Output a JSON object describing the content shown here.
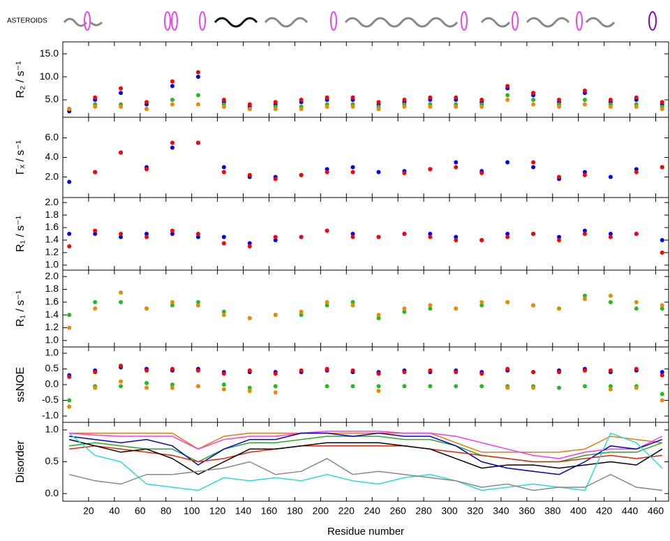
{
  "header": {
    "label": "ASTEROIDS"
  },
  "chart_data": [
    {
      "type": "scatter",
      "ylabel": "R₂ / s⁻¹",
      "xlim": [
        0,
        470
      ],
      "ylim": [
        1.2,
        17.6
      ],
      "yticks": [
        {
          "value": 5,
          "label": "5.0"
        },
        {
          "value": 10,
          "label": "10.0"
        },
        {
          "value": 15,
          "label": "15.0"
        }
      ],
      "x": [
        5,
        25,
        45,
        65,
        85,
        105,
        125,
        145,
        165,
        185,
        205,
        225,
        245,
        265,
        285,
        305,
        325,
        345,
        365,
        385,
        405,
        425,
        445,
        465
      ],
      "series": [
        {
          "color": "#0000ff",
          "values": [
            2.5,
            5,
            6.5,
            4,
            8,
            10,
            4.5,
            3.5,
            4,
            4.5,
            5,
            5,
            4,
            4.5,
            5,
            5,
            4.5,
            7.5,
            6,
            4.5,
            6.5,
            4.5,
            5,
            4
          ]
        },
        {
          "color": "#ff0000",
          "values": [
            3,
            5.5,
            7.5,
            4.5,
            9,
            11,
            5,
            4,
            4.5,
            5,
            5.5,
            5.5,
            4.5,
            5,
            5.5,
            5.5,
            5,
            8,
            6.5,
            5,
            7,
            5,
            5.5,
            4.5
          ]
        },
        {
          "color": "#22bb22",
          "values": [
            3,
            4,
            4,
            3,
            5,
            6,
            4,
            3,
            3.5,
            3.5,
            4,
            4,
            3.5,
            4,
            4,
            4,
            4,
            6,
            5,
            4,
            5,
            4,
            4,
            3.5
          ]
        },
        {
          "color": "#ee8800",
          "values": [
            3,
            3.5,
            3.5,
            3,
            4,
            4,
            3.5,
            3,
            3,
            3,
            3.5,
            3.5,
            3,
            3.5,
            3.5,
            3.5,
            3.5,
            5,
            4,
            3.5,
            4,
            3.5,
            3.5,
            3
          ]
        }
      ]
    },
    {
      "type": "scatter",
      "ylabel": "Γₓ / s⁻¹",
      "xlim": [
        0,
        470
      ],
      "ylim": [
        -0.1,
        8.1
      ],
      "yticks": [
        {
          "value": 2,
          "label": "2.0"
        },
        {
          "value": 4,
          "label": "4.0"
        },
        {
          "value": 6,
          "label": "6.0"
        }
      ],
      "x": [
        5,
        25,
        45,
        65,
        85,
        105,
        125,
        145,
        165,
        185,
        205,
        225,
        245,
        265,
        285,
        305,
        325,
        345,
        365,
        385,
        405,
        425,
        445,
        465
      ],
      "series": [
        {
          "color": "#0000ff",
          "values": [
            1.5,
            2.5,
            4.5,
            3,
            5,
            5.5,
            3,
            2,
            2,
            2.2,
            2.8,
            3,
            2.5,
            2.6,
            2.8,
            3.5,
            2.6,
            3.5,
            3,
            1.8,
            2.5,
            2,
            2.8,
            3
          ]
        },
        {
          "color": "#ff0000",
          "values": [
            null,
            2.5,
            4.5,
            2.8,
            5.5,
            5.5,
            2.5,
            2.2,
            1.8,
            2.2,
            2.5,
            2.5,
            null,
            2.4,
            2.8,
            3,
            2.4,
            null,
            3.5,
            2,
            2.2,
            null,
            2.5,
            3
          ]
        }
      ]
    },
    {
      "type": "scatter",
      "ylabel": "R₁ / s⁻¹",
      "xlim": [
        0,
        470
      ],
      "ylim": [
        0.92,
        2.08
      ],
      "yticks": [
        {
          "value": 1,
          "label": "1.0"
        },
        {
          "value": 1.2,
          "label": "1.2"
        },
        {
          "value": 1.4,
          "label": "1.4"
        },
        {
          "value": 1.6,
          "label": "1.6"
        },
        {
          "value": 1.8,
          "label": "1.8"
        },
        {
          "value": 2,
          "label": "2.0"
        }
      ],
      "x": [
        5,
        25,
        45,
        65,
        85,
        105,
        125,
        145,
        165,
        185,
        205,
        225,
        245,
        265,
        285,
        305,
        325,
        345,
        365,
        385,
        405,
        425,
        445,
        465
      ],
      "series": [
        {
          "color": "#0000ff",
          "values": [
            1.5,
            1.5,
            1.45,
            1.5,
            1.5,
            1.45,
            1.45,
            1.35,
            1.4,
            1.45,
            1.55,
            1.5,
            1.45,
            1.5,
            1.5,
            1.45,
            1.4,
            1.5,
            1.5,
            1.45,
            1.55,
            1.5,
            1.5,
            1.4
          ]
        },
        {
          "color": "#ff0000",
          "values": [
            1.3,
            1.55,
            1.5,
            1.45,
            1.55,
            1.5,
            1.35,
            1.3,
            1.45,
            1.45,
            1.55,
            1.45,
            1.45,
            1.5,
            1.45,
            1.4,
            1.4,
            1.45,
            1.5,
            1.4,
            1.5,
            1.45,
            1.5,
            1.2
          ]
        }
      ]
    },
    {
      "type": "scatter",
      "ylabel": "R₁ / s⁻¹",
      "xlim": [
        0,
        470
      ],
      "ylim": [
        0.9,
        2.1
      ],
      "yticks": [
        {
          "value": 1,
          "label": "1.0"
        },
        {
          "value": 1.2,
          "label": "1.2"
        },
        {
          "value": 1.4,
          "label": "1.4"
        },
        {
          "value": 1.6,
          "label": "1.6"
        },
        {
          "value": 1.8,
          "label": "1.8"
        },
        {
          "value": 2,
          "label": "2.0"
        }
      ],
      "x": [
        5,
        25,
        45,
        65,
        85,
        105,
        125,
        145,
        165,
        185,
        205,
        225,
        245,
        265,
        285,
        305,
        325,
        345,
        365,
        385,
        405,
        425,
        445,
        465
      ],
      "series": [
        {
          "color": "#22bb22",
          "values": [
            1.4,
            1.6,
            1.6,
            1.5,
            1.55,
            1.6,
            1.45,
            1.35,
            1.4,
            1.4,
            1.55,
            1.6,
            1.35,
            1.45,
            1.5,
            1.5,
            1.55,
            1.6,
            1.55,
            1.5,
            1.7,
            1.6,
            1.5,
            1.5
          ]
        },
        {
          "color": "#ee8800",
          "values": [
            1.2,
            1.5,
            1.75,
            1.5,
            1.6,
            1.55,
            1.4,
            1.35,
            1.4,
            1.45,
            1.6,
            1.55,
            1.4,
            1.5,
            1.55,
            1.5,
            1.6,
            1.6,
            1.55,
            1.5,
            1.65,
            1.7,
            1.6,
            1.55
          ]
        }
      ]
    },
    {
      "type": "scatter",
      "ylabel": "ssNOE",
      "xlim": [
        0,
        470
      ],
      "ylim": [
        -1.2,
        1.2
      ],
      "yticks": [
        {
          "value": -1,
          "label": "-1.0"
        },
        {
          "value": -0.5,
          "label": "-0.5"
        },
        {
          "value": 0,
          "label": "0.0"
        },
        {
          "value": 0.5,
          "label": "0.5"
        },
        {
          "value": 1,
          "label": "1.0"
        }
      ],
      "x": [
        5,
        25,
        45,
        65,
        85,
        105,
        125,
        145,
        165,
        185,
        205,
        225,
        245,
        265,
        285,
        305,
        325,
        345,
        365,
        385,
        405,
        425,
        445,
        465
      ],
      "series": [
        {
          "color": "#0000ff",
          "values": [
            0.3,
            0.45,
            0.55,
            0.5,
            0.45,
            0.5,
            0.4,
            0.4,
            0.4,
            0.4,
            0.45,
            0.4,
            0.4,
            0.45,
            0.4,
            0.45,
            0.4,
            0.45,
            0.4,
            0.45,
            0.5,
            0.4,
            0.45,
            0.4
          ]
        },
        {
          "color": "#ff0000",
          "values": [
            0.25,
            0.4,
            0.6,
            0.45,
            0.5,
            0.45,
            0.35,
            0.45,
            0.35,
            0.45,
            0.5,
            0.45,
            0.35,
            0.4,
            0.45,
            0.4,
            0.35,
            0.5,
            0.4,
            0.4,
            0.45,
            0.45,
            0.5,
            0.3
          ]
        },
        {
          "color": "#22bb22",
          "values": [
            -0.5,
            -0.05,
            -0.05,
            0.05,
            0,
            -0.05,
            0,
            -0.1,
            -0.05,
            null,
            -0.05,
            -0.05,
            -0.05,
            -0.05,
            -0.05,
            -0.05,
            -0.05,
            -0.05,
            -0.05,
            -0.1,
            -0.05,
            -0.05,
            -0.05,
            -0.3
          ]
        },
        {
          "color": "#ee8800",
          "values": [
            -0.7,
            -0.1,
            0.1,
            -0.1,
            -0.1,
            -0.05,
            -0.15,
            -0.2,
            -0.25,
            null,
            null,
            null,
            -0.2,
            null,
            null,
            null,
            null,
            -0.1,
            -0.1,
            null,
            null,
            -0.15,
            -0.1,
            -0.5
          ]
        }
      ]
    },
    {
      "type": "line",
      "ylabel": "Disorder",
      "xlabel": "Residue number",
      "xlim": [
        0,
        470
      ],
      "ylim": [
        -0.12,
        1.12
      ],
      "yticks": [
        {
          "value": 0,
          "label": "0.0"
        },
        {
          "value": 0.5,
          "label": "0.5"
        },
        {
          "value": 1,
          "label": "1.0"
        }
      ],
      "xticks": [
        20,
        40,
        60,
        80,
        100,
        120,
        140,
        160,
        180,
        200,
        220,
        240,
        260,
        280,
        300,
        320,
        340,
        360,
        380,
        400,
        420,
        440,
        460
      ],
      "x": [
        5,
        25,
        45,
        65,
        85,
        105,
        125,
        145,
        165,
        185,
        205,
        225,
        245,
        265,
        285,
        305,
        325,
        345,
        365,
        385,
        405,
        425,
        445,
        465
      ],
      "series": [
        {
          "color": "#ee7700",
          "values": [
            0.95,
            0.95,
            0.95,
            0.95,
            0.95,
            0.7,
            0.9,
            0.95,
            0.95,
            0.95,
            0.95,
            0.95,
            0.95,
            0.95,
            0.95,
            0.8,
            0.65,
            0.65,
            0.65,
            0.65,
            0.7,
            0.9,
            0.85,
            0.8
          ]
        },
        {
          "color": "#ff33ff",
          "values": [
            0.95,
            0.92,
            0.9,
            0.9,
            0.9,
            0.7,
            0.85,
            0.9,
            0.9,
            0.95,
            0.98,
            0.98,
            0.98,
            0.95,
            0.95,
            0.9,
            0.8,
            0.7,
            0.6,
            0.55,
            0.65,
            0.7,
            0.7,
            0.9
          ]
        },
        {
          "color": "#22aa22",
          "values": [
            0.75,
            0.8,
            0.75,
            0.7,
            0.7,
            0.5,
            0.7,
            0.8,
            0.8,
            0.85,
            0.9,
            0.9,
            0.9,
            0.85,
            0.85,
            0.75,
            0.6,
            0.55,
            0.5,
            0.5,
            0.6,
            0.65,
            0.65,
            0.8
          ]
        },
        {
          "color": "#0000dd",
          "values": [
            0.9,
            0.85,
            0.8,
            0.85,
            0.75,
            0.45,
            0.7,
            0.85,
            0.85,
            0.95,
            0.95,
            0.9,
            0.95,
            0.9,
            0.9,
            0.75,
            0.5,
            0.4,
            0.35,
            0.3,
            0.5,
            0.75,
            0.7,
            0.85
          ]
        },
        {
          "color": "#ee2200",
          "values": [
            0.7,
            0.75,
            0.7,
            0.65,
            0.6,
            0.5,
            0.55,
            0.65,
            0.7,
            0.75,
            0.75,
            0.75,
            0.75,
            0.75,
            0.7,
            0.65,
            0.6,
            0.55,
            0.5,
            0.5,
            0.55,
            0.6,
            0.55,
            0.6
          ]
        },
        {
          "color": "#000000",
          "values": [
            0.85,
            0.75,
            0.65,
            0.7,
            0.55,
            0.3,
            0.5,
            0.7,
            0.7,
            0.75,
            0.8,
            0.8,
            0.8,
            0.75,
            0.7,
            0.55,
            0.4,
            0.45,
            0.45,
            0.4,
            0.45,
            0.5,
            0.45,
            0.7
          ]
        },
        {
          "color": "#22dddd",
          "values": [
            0.95,
            0.6,
            0.5,
            0.15,
            0.1,
            0.05,
            0.25,
            0.2,
            0.25,
            0.2,
            0.3,
            0.2,
            0.15,
            0.25,
            0.3,
            0.2,
            0.05,
            0.1,
            0.15,
            0.1,
            0.05,
            0.95,
            0.8,
            0.4
          ]
        },
        {
          "color": "#888888",
          "values": [
            0.3,
            0.2,
            0.15,
            0.3,
            0.3,
            0.35,
            0.4,
            0.5,
            0.3,
            0.35,
            0.55,
            0.3,
            0.35,
            0.3,
            0.25,
            0.2,
            0.1,
            0.15,
            0.05,
            0.1,
            0.1,
            0.3,
            0.1,
            0.05
          ]
        }
      ]
    }
  ]
}
